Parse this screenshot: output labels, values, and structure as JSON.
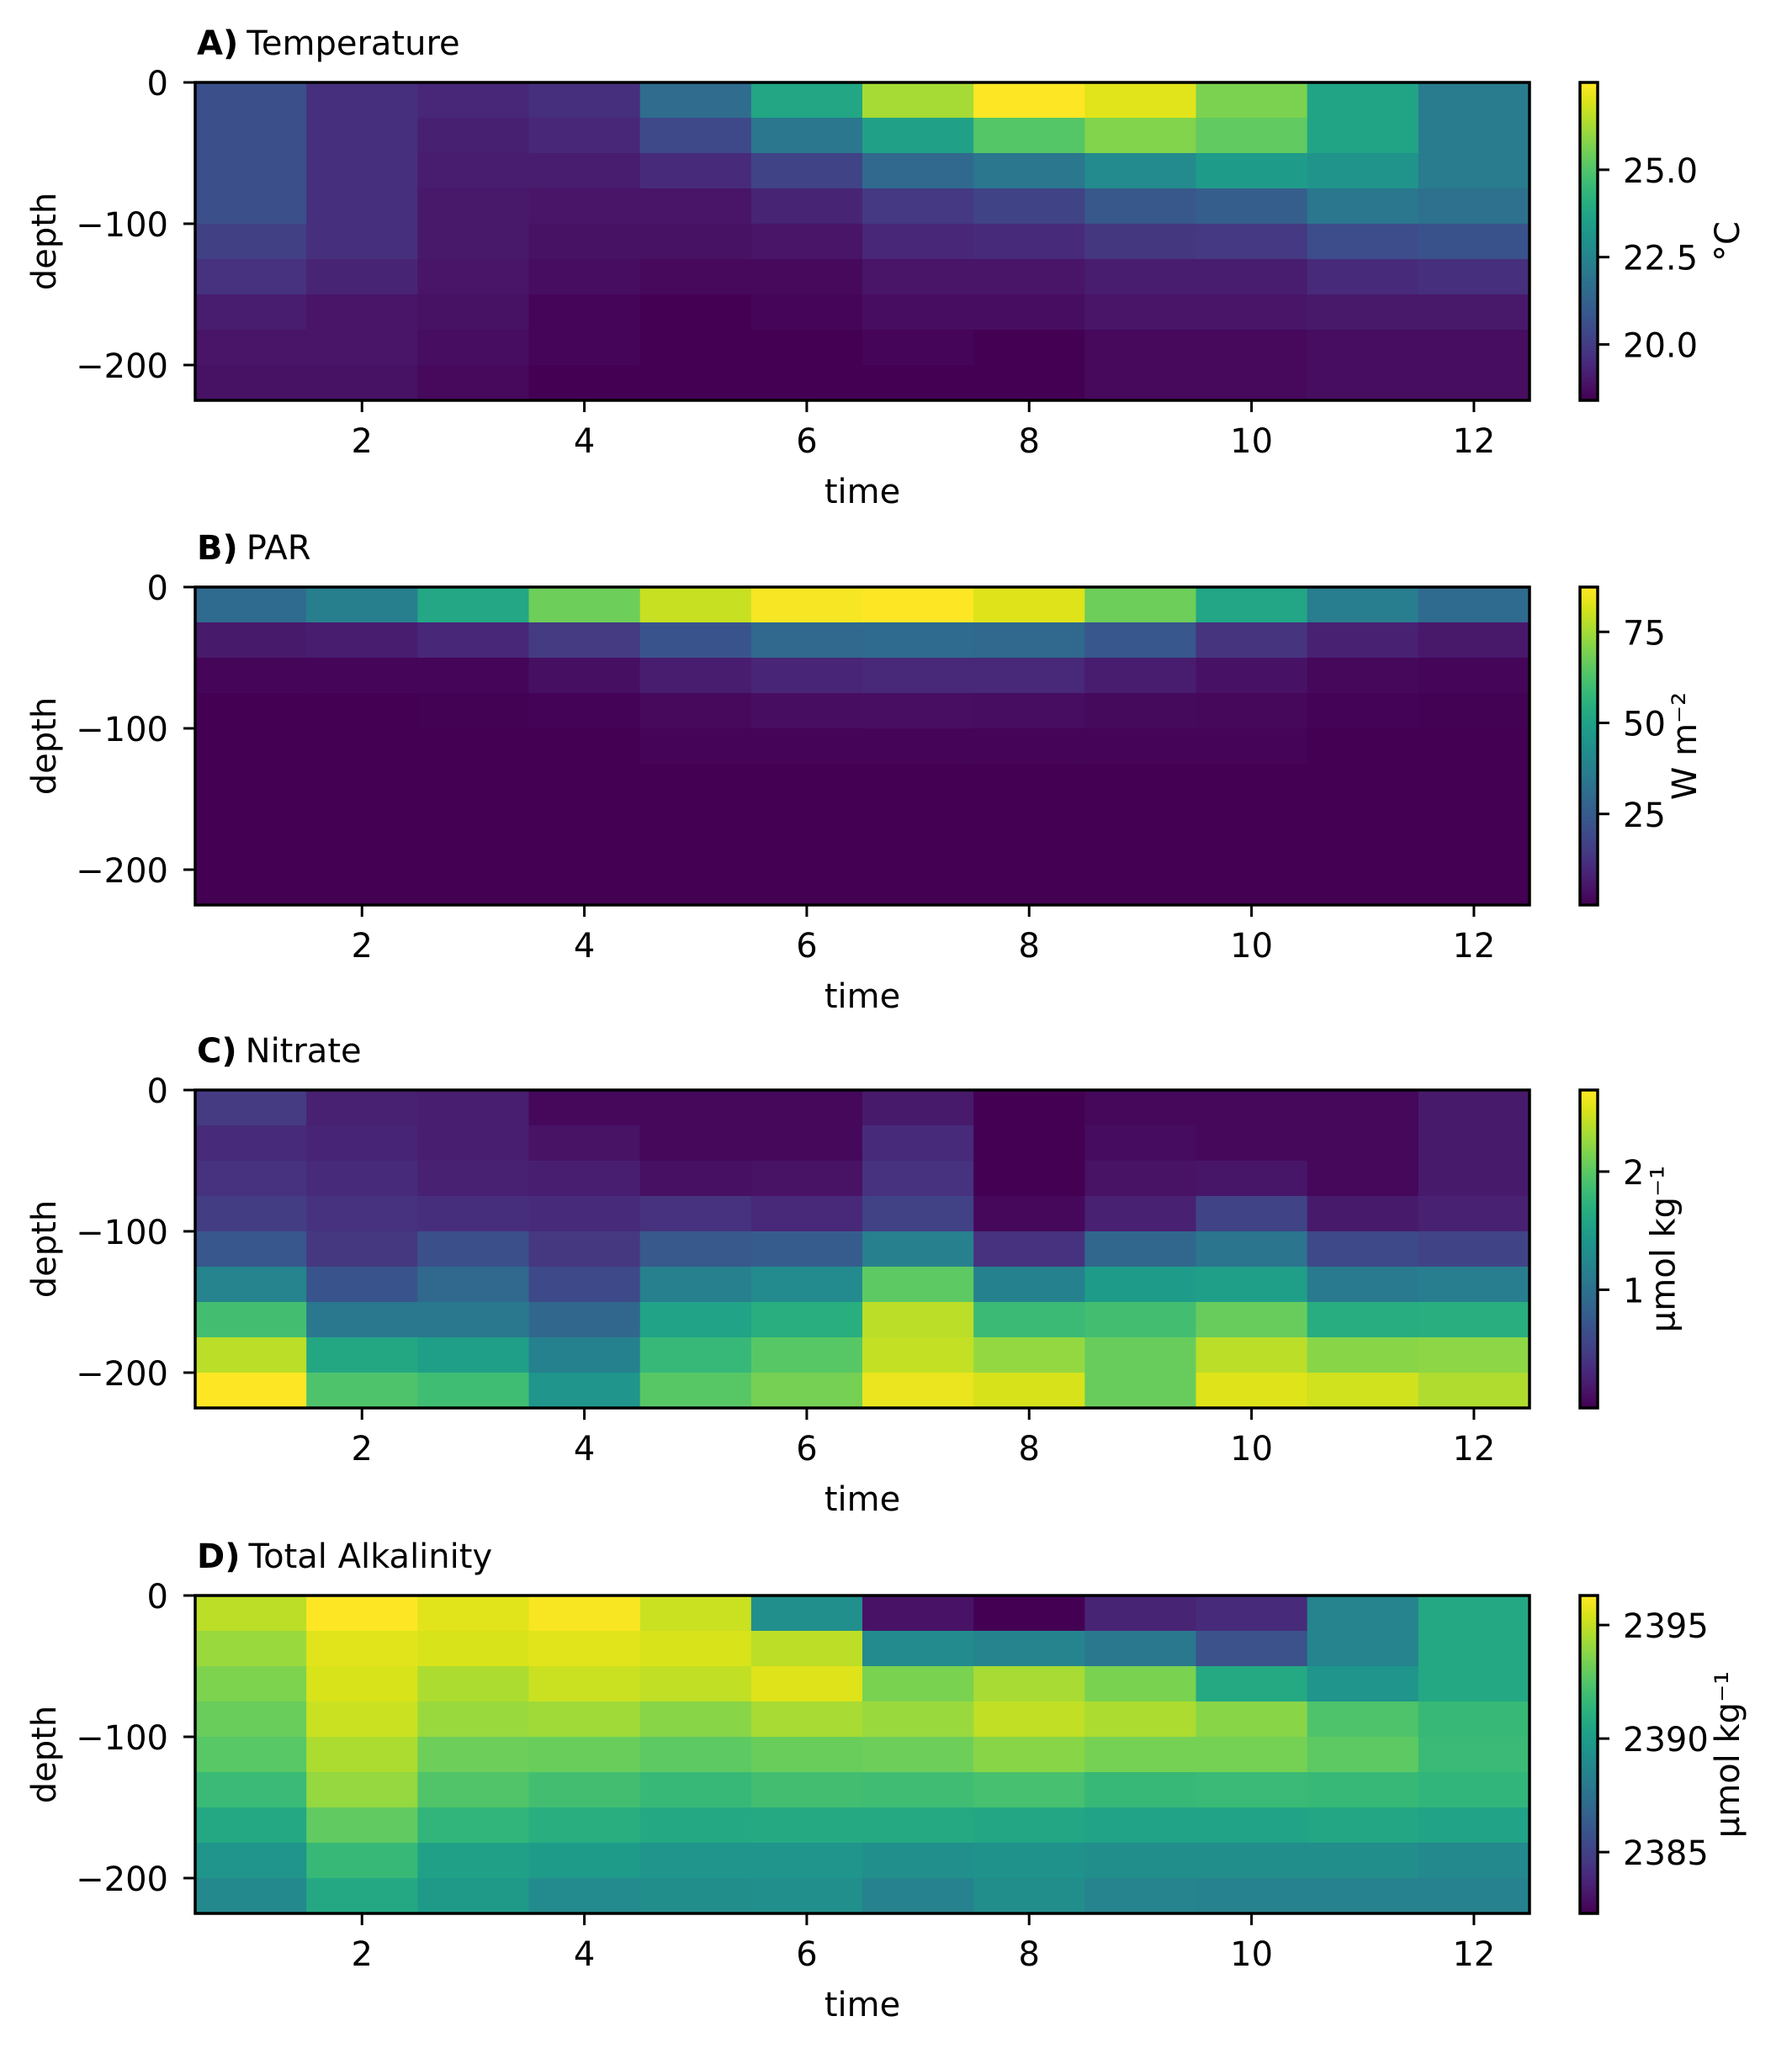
{
  "figure": {
    "colormap": "viridis",
    "background": "#ffffff"
  },
  "chart_data": [
    {
      "type": "heatmap",
      "panel_letter": "A)",
      "title": "Temperature",
      "xlabel": "time",
      "ylabel": "depth",
      "x": [
        1,
        2,
        3,
        4,
        5,
        6,
        7,
        8,
        9,
        10,
        11,
        12
      ],
      "y": [
        -12.5,
        -37.5,
        -62.5,
        -87.5,
        -112.5,
        -137.5,
        -162.5,
        -187.5,
        -212.5
      ],
      "xlim": [
        0.5,
        12.5
      ],
      "ylim": [
        -225,
        0
      ],
      "xticks": [
        2,
        4,
        6,
        8,
        10,
        12
      ],
      "xtick_labels": [
        "2",
        "4",
        "6",
        "8",
        "10",
        "12"
      ],
      "yticks": [
        0,
        -100,
        -200
      ],
      "ytick_labels": [
        "0",
        "−100",
        "−200"
      ],
      "colorbar": {
        "label": "°C",
        "vmin": 18.4,
        "vmax": 27.5,
        "ticks": [
          20.0,
          22.5,
          25.0
        ],
        "tick_labels": [
          "20.0",
          "22.5",
          "25.0"
        ]
      },
      "values": [
        [
          20.6,
          19.6,
          19.4,
          19.6,
          21.6,
          23.8,
          26.3,
          27.5,
          27.1,
          25.7,
          23.7,
          22.2
        ],
        [
          20.6,
          19.6,
          19.2,
          19.4,
          20.4,
          22.0,
          23.6,
          25.1,
          25.8,
          25.3,
          23.7,
          22.2
        ],
        [
          20.6,
          19.6,
          19.1,
          19.1,
          19.5,
          20.2,
          21.5,
          22.0,
          22.7,
          23.4,
          23.1,
          22.2
        ],
        [
          20.6,
          19.6,
          19.0,
          18.9,
          18.9,
          19.3,
          19.9,
          20.2,
          20.9,
          21.1,
          22.0,
          21.8
        ],
        [
          20.1,
          19.6,
          19.0,
          18.8,
          18.8,
          18.9,
          19.4,
          19.5,
          19.8,
          19.9,
          20.5,
          20.7
        ],
        [
          19.7,
          19.3,
          18.9,
          18.7,
          18.6,
          18.6,
          18.9,
          18.9,
          19.1,
          19.1,
          19.5,
          19.6
        ],
        [
          19.1,
          18.9,
          18.8,
          18.5,
          18.4,
          18.5,
          18.7,
          18.7,
          18.9,
          18.9,
          19.0,
          19.0
        ],
        [
          18.9,
          18.9,
          18.7,
          18.5,
          18.4,
          18.4,
          18.5,
          18.4,
          18.6,
          18.6,
          18.7,
          18.7
        ],
        [
          18.8,
          18.8,
          18.6,
          18.4,
          18.4,
          18.4,
          18.4,
          18.4,
          18.6,
          18.6,
          18.7,
          18.7
        ]
      ]
    },
    {
      "type": "heatmap",
      "panel_letter": "B)",
      "title": "PAR",
      "xlabel": "time",
      "ylabel": "depth",
      "x": [
        1,
        2,
        3,
        4,
        5,
        6,
        7,
        8,
        9,
        10,
        11,
        12
      ],
      "y": [
        -12.5,
        -37.5,
        -62.5,
        -87.5,
        -112.5,
        -137.5,
        -162.5,
        -187.5,
        -212.5
      ],
      "xlim": [
        0.5,
        12.5
      ],
      "ylim": [
        -225,
        0
      ],
      "xticks": [
        2,
        4,
        6,
        8,
        10,
        12
      ],
      "xtick_labels": [
        "2",
        "4",
        "6",
        "8",
        "10",
        "12"
      ],
      "yticks": [
        0,
        -100,
        -200
      ],
      "ytick_labels": [
        "0",
        "−100",
        "−200"
      ],
      "colorbar": {
        "label": "W m⁻²",
        "vmin": 0.0,
        "vmax": 87.3,
        "ticks": [
          25,
          50,
          75
        ],
        "tick_labels": [
          "25",
          "50",
          "75"
        ]
      },
      "values": [
        [
          30.5,
          37.5,
          52.0,
          68.0,
          80.0,
          86.5,
          87.3,
          83.0,
          68.0,
          51.5,
          36.7,
          30.5
        ],
        [
          6.0,
          7.0,
          9.5,
          14.8,
          22.7,
          29.7,
          30.5,
          29.7,
          23.5,
          13.0,
          7.9,
          5.7
        ],
        [
          1.0,
          1.0,
          1.0,
          3.5,
          7.0,
          9.0,
          9.6,
          9.6,
          7.0,
          4.0,
          1.7,
          1.0
        ],
        [
          0.1,
          0.1,
          0.2,
          0.5,
          2.0,
          3.0,
          3.2,
          2.8,
          2.2,
          1.8,
          0.5,
          0.2
        ],
        [
          0.05,
          0.05,
          0.05,
          0.1,
          0.8,
          0.8,
          0.8,
          0.8,
          0.8,
          0.8,
          0.05,
          0.05
        ],
        [
          0.0,
          0.0,
          0.0,
          0.0,
          0.1,
          0.1,
          0.1,
          0.1,
          0.1,
          0.1,
          0.0,
          0.0
        ],
        [
          0.0,
          0.0,
          0.0,
          0.0,
          0.0,
          0.0,
          0.0,
          0.0,
          0.0,
          0.0,
          0.0,
          0.0
        ],
        [
          0.0,
          0.0,
          0.0,
          0.0,
          0.0,
          0.0,
          0.0,
          0.0,
          0.0,
          0.0,
          0.0,
          0.0
        ],
        [
          0.0,
          0.0,
          0.0,
          0.0,
          0.0,
          0.0,
          0.0,
          0.0,
          0.0,
          0.0,
          0.0,
          0.0
        ]
      ]
    },
    {
      "type": "heatmap",
      "panel_letter": "C)",
      "title": "Nitrate",
      "xlabel": "time",
      "ylabel": "depth",
      "x": [
        1,
        2,
        3,
        4,
        5,
        6,
        7,
        8,
        9,
        10,
        11,
        12
      ],
      "y": [
        -12.5,
        -37.5,
        -62.5,
        -87.5,
        -112.5,
        -137.5,
        -162.5,
        -187.5,
        -212.5
      ],
      "xlim": [
        0.5,
        12.5
      ],
      "ylim": [
        -225,
        0
      ],
      "xticks": [
        2,
        4,
        6,
        8,
        10,
        12
      ],
      "xtick_labels": [
        "2",
        "4",
        "6",
        "8",
        "10",
        "12"
      ],
      "yticks": [
        0,
        -100,
        -200
      ],
      "ytick_labels": [
        "0",
        "−100",
        "−200"
      ],
      "colorbar": {
        "label": "μmol kg⁻¹",
        "vmin": 0.0,
        "vmax": 2.69,
        "ticks": [
          1,
          2
        ],
        "tick_labels": [
          "1",
          "2"
        ]
      },
      "values": [
        [
          0.46,
          0.24,
          0.22,
          0.05,
          0.05,
          0.05,
          0.19,
          0.0,
          0.05,
          0.05,
          0.05,
          0.19
        ],
        [
          0.32,
          0.27,
          0.22,
          0.13,
          0.05,
          0.05,
          0.32,
          0.0,
          0.08,
          0.05,
          0.05,
          0.19
        ],
        [
          0.38,
          0.32,
          0.24,
          0.22,
          0.11,
          0.13,
          0.38,
          0.0,
          0.13,
          0.16,
          0.05,
          0.19
        ],
        [
          0.48,
          0.38,
          0.35,
          0.32,
          0.38,
          0.3,
          0.51,
          0.05,
          0.24,
          0.54,
          0.19,
          0.24
        ],
        [
          0.73,
          0.43,
          0.65,
          0.43,
          0.75,
          0.78,
          1.16,
          0.38,
          0.89,
          1.05,
          0.59,
          0.54
        ],
        [
          1.21,
          0.7,
          0.91,
          0.59,
          1.16,
          1.29,
          2.02,
          1.18,
          1.48,
          1.51,
          1.1,
          1.13
        ],
        [
          1.88,
          1.08,
          1.08,
          0.89,
          1.56,
          1.69,
          2.42,
          1.83,
          1.88,
          2.07,
          1.67,
          1.69
        ],
        [
          2.42,
          1.61,
          1.51,
          1.18,
          1.8,
          1.99,
          2.45,
          2.26,
          2.07,
          2.42,
          2.21,
          2.23
        ],
        [
          2.69,
          1.94,
          1.86,
          1.4,
          1.99,
          2.13,
          2.61,
          2.53,
          2.07,
          2.56,
          2.5,
          2.37
        ]
      ]
    },
    {
      "type": "heatmap",
      "panel_letter": "D)",
      "title": "Total Alkalinity",
      "xlabel": "time",
      "ylabel": "depth",
      "x": [
        1,
        2,
        3,
        4,
        5,
        6,
        7,
        8,
        9,
        10,
        11,
        12
      ],
      "y": [
        -12.5,
        -37.5,
        -62.5,
        -87.5,
        -112.5,
        -137.5,
        -162.5,
        -187.5,
        -212.5
      ],
      "xlim": [
        0.5,
        12.5
      ],
      "ylim": [
        -225,
        0
      ],
      "xticks": [
        2,
        4,
        6,
        8,
        10,
        12
      ],
      "xtick_labels": [
        "2",
        "4",
        "6",
        "8",
        "10",
        "12"
      ],
      "yticks": [
        0,
        -100,
        -200
      ],
      "ytick_labels": [
        "0",
        "−100",
        "−200"
      ],
      "colorbar": {
        "label": "μmol kg⁻¹",
        "vmin": 2382.3,
        "vmax": 2396.3,
        "ticks": [
          2385,
          2390,
          2395
        ],
        "tick_labels": [
          "2385",
          "2390",
          "2395"
        ]
      },
      "values": [
        [
          2394.9,
          2396.3,
          2395.7,
          2396.2,
          2395.2,
          2389.3,
          2383.0,
          2382.3,
          2383.7,
          2384.0,
          2388.6,
          2390.7
        ],
        [
          2394.2,
          2395.7,
          2395.5,
          2395.7,
          2395.5,
          2394.9,
          2389.0,
          2388.6,
          2387.9,
          2385.8,
          2388.6,
          2390.7
        ],
        [
          2393.6,
          2395.5,
          2394.6,
          2395.2,
          2395.0,
          2395.6,
          2393.5,
          2394.5,
          2393.5,
          2390.8,
          2389.6,
          2390.7
        ],
        [
          2393.1,
          2395.2,
          2394.2,
          2394.3,
          2393.8,
          2394.5,
          2394.2,
          2395.0,
          2394.6,
          2393.8,
          2392.4,
          2391.7
        ],
        [
          2392.7,
          2394.6,
          2393.2,
          2393.1,
          2392.8,
          2393.1,
          2393.2,
          2393.8,
          2393.4,
          2393.4,
          2392.8,
          2391.8
        ],
        [
          2391.8,
          2394.1,
          2392.5,
          2392.1,
          2391.7,
          2392.1,
          2392.0,
          2392.2,
          2391.7,
          2391.8,
          2391.7,
          2391.5
        ],
        [
          2390.7,
          2392.9,
          2391.5,
          2391.1,
          2390.7,
          2390.8,
          2390.8,
          2390.6,
          2390.4,
          2390.4,
          2390.6,
          2390.4
        ],
        [
          2389.6,
          2391.7,
          2390.3,
          2390.0,
          2389.6,
          2389.6,
          2389.3,
          2389.4,
          2389.2,
          2389.2,
          2389.2,
          2388.9
        ],
        [
          2388.9,
          2390.7,
          2389.9,
          2389.0,
          2389.2,
          2389.3,
          2388.5,
          2389.2,
          2388.6,
          2388.5,
          2388.5,
          2388.5
        ]
      ]
    }
  ]
}
